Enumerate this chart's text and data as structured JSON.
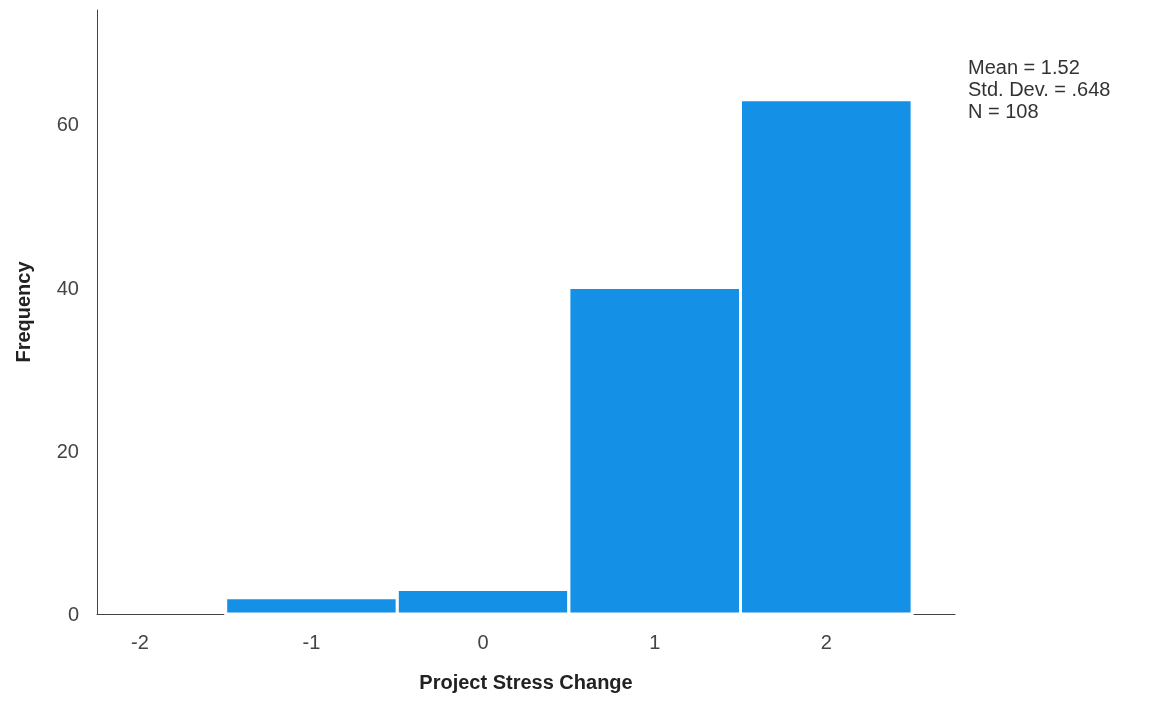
{
  "chart_data": {
    "type": "histogram",
    "xlabel": "Project Stress Change",
    "ylabel": "Frequency",
    "bins": [
      -1.5,
      -0.5,
      0.5,
      1.5,
      2.5
    ],
    "values": [
      2,
      3,
      40,
      63
    ],
    "color": "#1490e6",
    "xlim": [
      -2.25,
      2.75
    ],
    "xticks": [
      -2,
      -1,
      0,
      1,
      2
    ],
    "ylim": [
      0,
      74
    ],
    "yticks": [
      0,
      20,
      40,
      60
    ],
    "grid": false,
    "legend": false,
    "annotations": [
      "Mean = 1.52",
      "Std. Dev. = .648",
      "N = 108"
    ]
  }
}
